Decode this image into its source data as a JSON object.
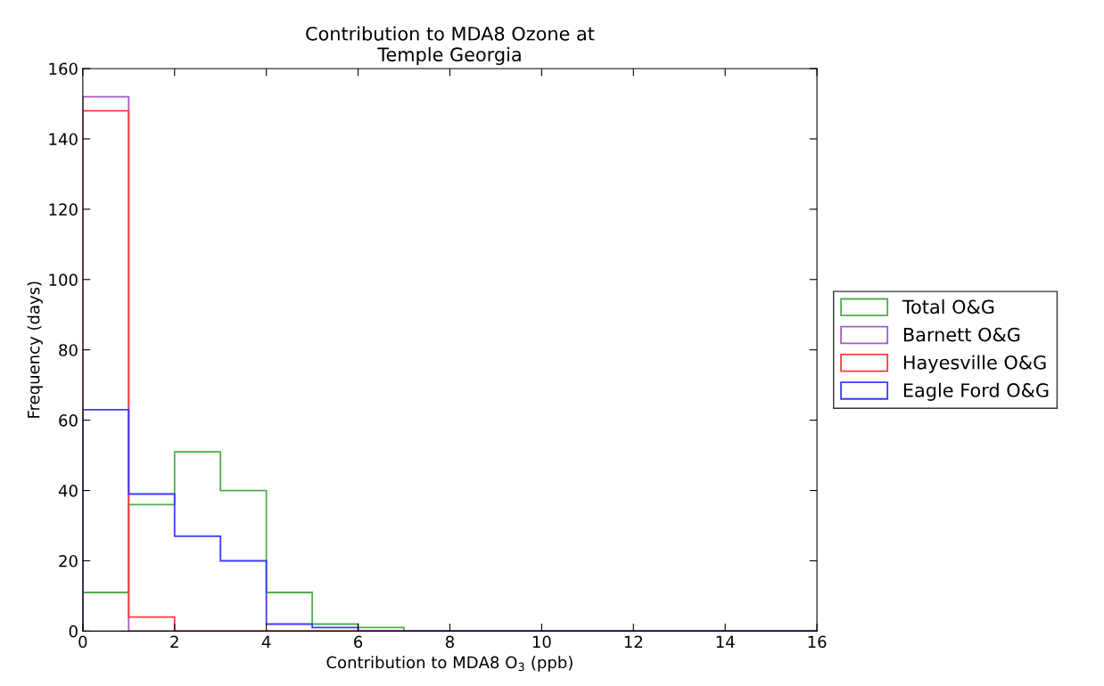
{
  "chart_data": {
    "type": "histogram",
    "title": "Contribution to MDA8 Ozone at\nTemple Georgia",
    "xlabel": "Contribution to MDA8 O$_{3}$ (ppb)",
    "ylabel": "Frequency (days)",
    "bins": [
      0,
      1,
      2,
      3,
      4,
      5,
      6,
      7,
      8,
      9,
      10,
      11,
      12,
      13,
      14,
      15,
      16
    ],
    "series": [
      {
        "name": "Total O&G",
        "color": "#4daf4a",
        "values": [
          11,
          36,
          51,
          40,
          11,
          2,
          1,
          0,
          0,
          0,
          0,
          0,
          0,
          0,
          0,
          0
        ]
      },
      {
        "name": "Barnett O&G",
        "color": "#a45fc0",
        "values": [
          152,
          0,
          0,
          0,
          0,
          0,
          0,
          0,
          0,
          0,
          0,
          0,
          0,
          0,
          0,
          0
        ]
      },
      {
        "name": "Hayesville O&G",
        "color": "#ff3b3b",
        "values": [
          148,
          4,
          0,
          0,
          0,
          0,
          0,
          0,
          0,
          0,
          0,
          0,
          0,
          0,
          0,
          0
        ]
      },
      {
        "name": "Eagle Ford O&G",
        "color": "#3b3bff",
        "values": [
          63,
          39,
          27,
          20,
          2,
          1,
          0,
          0,
          0,
          0,
          0,
          0,
          0,
          0,
          0,
          0
        ]
      }
    ],
    "xlim": [
      0,
      16
    ],
    "ylim": [
      0,
      160
    ],
    "xticks": [
      0,
      2,
      4,
      6,
      8,
      10,
      12,
      14,
      16
    ],
    "yticks": [
      0,
      20,
      40,
      60,
      80,
      100,
      120,
      140,
      160
    ],
    "grid": false,
    "legend": "right"
  }
}
